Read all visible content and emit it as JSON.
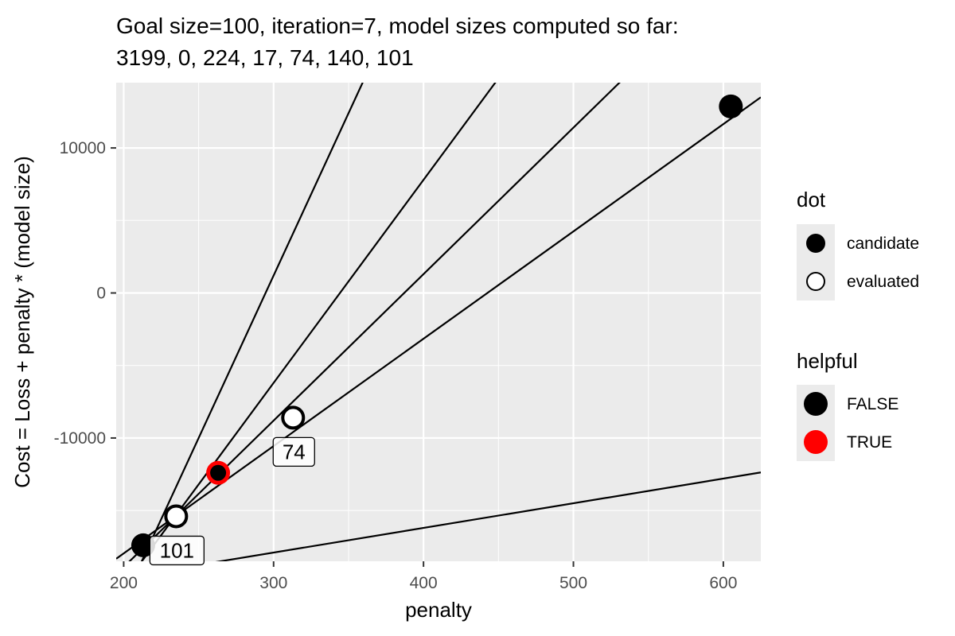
{
  "chart_data": {
    "type": "line",
    "title_line1": "Goal size=100, iteration=7, model sizes computed so far:",
    "title_line2": "3199, 0, 224, 17, 74, 140, 101",
    "xlabel": "penalty",
    "ylabel": "Cost = Loss + penalty * (model size)",
    "xlim": [
      195,
      625
    ],
    "ylim": [
      -18500,
      14500
    ],
    "x_ticks": [
      200,
      300,
      400,
      500,
      600
    ],
    "y_ticks": [
      -10000,
      0,
      10000
    ],
    "grid": true,
    "legend_placement": "right",
    "lines": [
      {
        "slope": 17,
        "intercept": -23000
      },
      {
        "slope": 74,
        "intercept": -32755
      },
      {
        "slope": 101,
        "intercept": -39100
      },
      {
        "slope": 140,
        "intercept": -48200
      },
      {
        "slope": 224,
        "intercept": -66000
      }
    ],
    "points": [
      {
        "x": 605,
        "y": 12860,
        "dot": "candidate",
        "helpful": "FALSE"
      },
      {
        "x": 213,
        "y": -17400,
        "dot": "candidate",
        "helpful": "FALSE"
      },
      {
        "x": 263,
        "y": -12400,
        "dot": "candidate",
        "helpful": "TRUE"
      },
      {
        "x": 313,
        "y": -8600,
        "dot": "evaluated",
        "helpful": "FALSE",
        "label": "74"
      },
      {
        "x": 235,
        "y": -15400,
        "dot": "evaluated",
        "helpful": "FALSE",
        "label": "101"
      }
    ],
    "legend": {
      "dot": {
        "title": "dot",
        "entries": [
          "candidate",
          "evaluated"
        ]
      },
      "helpful": {
        "title": "helpful",
        "entries": [
          "FALSE",
          "TRUE"
        ]
      }
    },
    "colors": {
      "panel": "#EBEBEB",
      "grid": "#FFFFFF",
      "line": "#000000",
      "candidate_fill": "#000000",
      "evaluated_fill": "#FFFFFF",
      "helpful_true": "#FF0000",
      "helpful_false": "#000000",
      "tick_text": "#4D4D4D"
    }
  }
}
